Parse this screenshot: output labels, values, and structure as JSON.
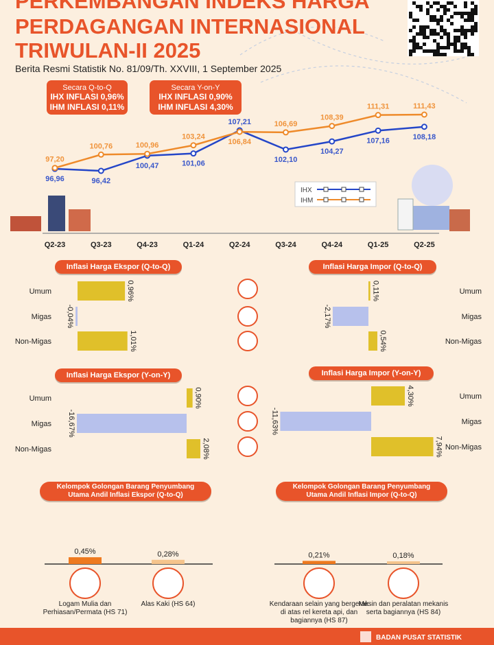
{
  "header": {
    "title_lines": [
      "PERKEMBANGAN INDEKS HARGA",
      "PERDAGANGAN INTERNASIONAL",
      "TRIWULAN-II 2025"
    ],
    "subtitle": "Berita Resmi Statistik No. 81/09/Th. XXVIII, 1 September 2025"
  },
  "summary": [
    {
      "heading": "Secara Q-to-Q",
      "lines": [
        "IHX INFLASI 0,96%",
        "IHM INFLASI 0,11%"
      ]
    },
    {
      "heading": "Secara Y-on-Y",
      "lines": [
        "IHX INFLASI 0,90%",
        "IHM INFLASI 4,30%"
      ]
    }
  ],
  "chart_data": [
    {
      "type": "line",
      "categories": [
        "Q2-23",
        "Q3-23",
        "Q4-23",
        "Q1-24",
        "Q2-24",
        "Q3-24",
        "Q4-24",
        "Q1-25",
        "Q2-25"
      ],
      "series": [
        {
          "name": "IHX",
          "color": "#2446c8",
          "values": [
            96.96,
            96.42,
            100.47,
            101.06,
            107.21,
            102.1,
            104.27,
            107.16,
            108.18
          ],
          "value_labels": [
            "96,96",
            "96,42",
            "100,47",
            "101,06",
            "107,21",
            "102,10",
            "104,27",
            "107,16",
            "108,18"
          ]
        },
        {
          "name": "IHM",
          "color": "#ee8a2a",
          "values": [
            97.2,
            100.76,
            100.96,
            103.24,
            106.84,
            106.69,
            108.39,
            111.31,
            111.43
          ],
          "value_labels": [
            "97,20",
            "100,76",
            "100,96",
            "103,24",
            "106,84",
            "106,69",
            "108,39",
            "111,31",
            "111,43"
          ]
        }
      ]
    },
    {
      "type": "hbar",
      "title": "Inflasi Harga Ekspor (Q-to-Q)",
      "categories": [
        "Umum",
        "Migas",
        "Non-Migas"
      ],
      "values": [
        0.96,
        -0.04,
        1.01
      ],
      "value_labels": [
        "0,96%",
        "-0,04%",
        "1,01%"
      ],
      "color": "#e0c02a",
      "negative_color": "#b7c1ec"
    },
    {
      "type": "hbar",
      "title": "Inflasi Harga Impor (Q-to-Q)",
      "categories": [
        "Umum",
        "Migas",
        "Non-Migas"
      ],
      "values": [
        0.11,
        -2.17,
        0.54
      ],
      "value_labels": [
        "0,11%",
        "-2,17%",
        "0,54%"
      ],
      "color": "#e0c02a",
      "negative_color": "#b7c1ec"
    },
    {
      "type": "hbar",
      "title": "Inflasi Harga Ekspor (Y-on-Y)",
      "categories": [
        "Umum",
        "Migas",
        "Non-Migas"
      ],
      "values": [
        0.9,
        -16.67,
        2.08
      ],
      "value_labels": [
        "0,90%",
        "-16,67%",
        "2,08%"
      ],
      "color": "#e0c02a",
      "negative_color": "#b7c1ec"
    },
    {
      "type": "hbar",
      "title": "Inflasi Harga Impor (Y-on-Y)",
      "categories": [
        "Umum",
        "Migas",
        "Non-Migas"
      ],
      "values": [
        4.3,
        -11.63,
        7.94
      ],
      "value_labels": [
        "4,30%",
        "-11,63%",
        "7,94%"
      ],
      "color": "#e0c02a",
      "negative_color": "#b7c1ec"
    },
    {
      "type": "bar",
      "title": "Kelompok Golongan Barang Penyumbang Utama Andil Inflasi Ekspor (Q-to-Q)",
      "categories": [
        "Logam Mulia dan Perhiasan/Permata (HS 71)",
        "Alas Kaki (HS 64)"
      ],
      "values": [
        0.45,
        0.28
      ],
      "value_labels": [
        "0,45%",
        "0,28%"
      ],
      "colors": [
        "#ee7a1f",
        "#f5c48c"
      ]
    },
    {
      "type": "bar",
      "title": "Kelompok Golongan Barang Penyumbang Utama Andil Inflasi Impor (Q-to-Q)",
      "categories": [
        "Kendaraan selain yang bergerak di atas rel kereta api, dan bagiannya (HS 87)",
        "Mesin dan peralatan mekanis serta bagiannya (HS 84)"
      ],
      "values": [
        0.21,
        0.18
      ],
      "value_labels": [
        "0,21%",
        "0,18%"
      ],
      "colors": [
        "#ee7a1f",
        "#f5c48c"
      ]
    }
  ],
  "footer": "BADAN PUSAT STATISTIK"
}
